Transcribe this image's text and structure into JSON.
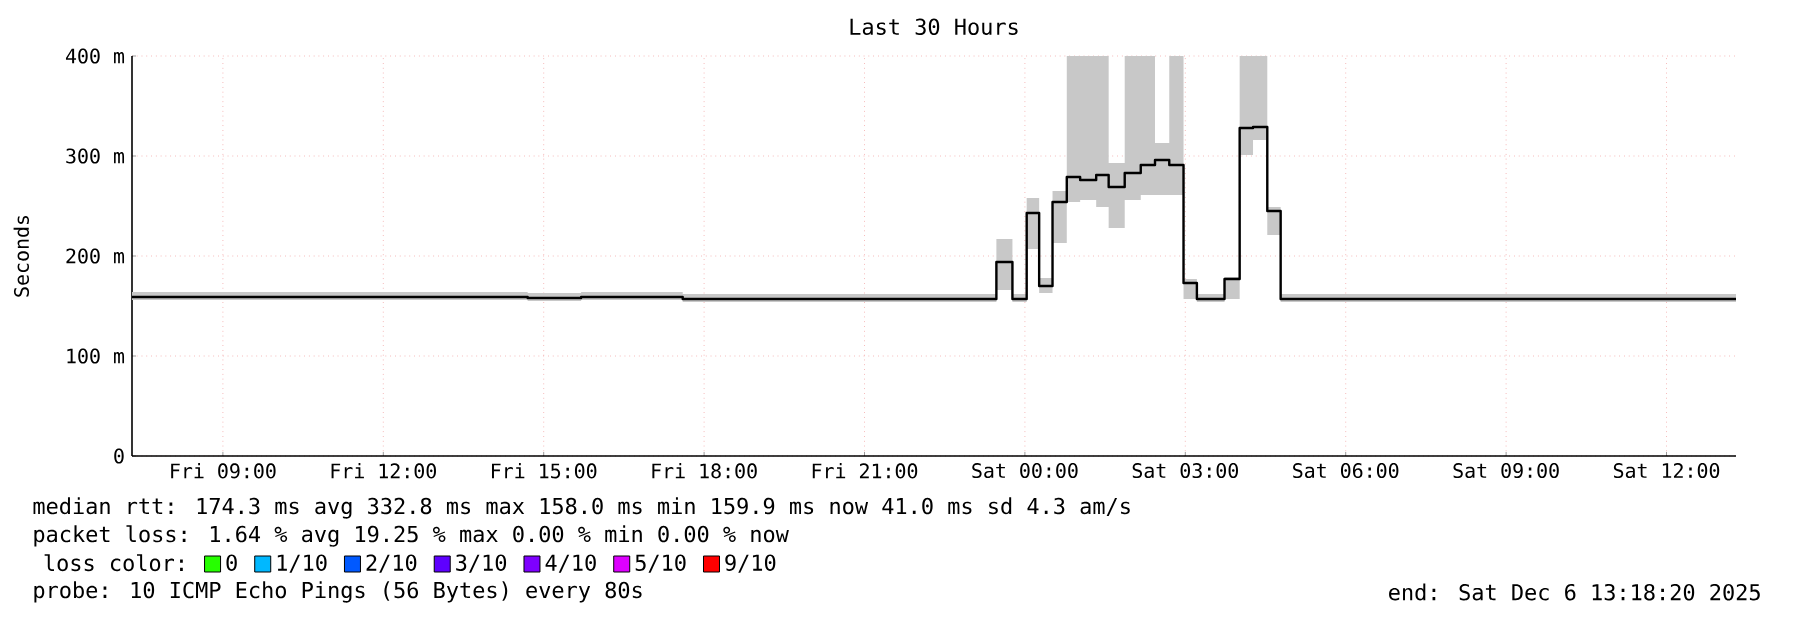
{
  "chart_data": {
    "type": "step",
    "title": "Last 30 Hours",
    "ylabel": "Seconds",
    "legend_title": "loss color:",
    "x": [
      "2025-12-05T07:18",
      "2025-12-05T14:42",
      "2025-12-05T15:42",
      "2025-12-05T17:36",
      "2025-12-05T19:45",
      "2025-12-05T20:30",
      "2025-12-05T21:04",
      "2025-12-05T21:54",
      "2025-12-05T23:12",
      "2025-12-05T23:28",
      "2025-12-05T23:46",
      "2025-12-06T00:02",
      "2025-12-06T00:16",
      "2025-12-06T00:31",
      "2025-12-06T00:47",
      "2025-12-06T01:02",
      "2025-12-06T01:20",
      "2025-12-06T01:34",
      "2025-12-06T01:52",
      "2025-12-06T02:10",
      "2025-12-06T02:26",
      "2025-12-06T02:42",
      "2025-12-06T02:58",
      "2025-12-06T03:13",
      "2025-12-06T03:29",
      "2025-12-06T03:44",
      "2025-12-06T04:01",
      "2025-12-06T04:16",
      "2025-12-06T04:32",
      "2025-12-06T04:47",
      "2025-12-06T13:18"
    ],
    "series": [
      {
        "color": "#000000",
        "values": [
          159,
          158,
          159,
          157,
          157,
          157,
          157,
          157,
          157,
          194,
          157,
          243,
          170,
          254,
          279,
          276,
          281,
          269,
          283,
          291,
          296,
          291,
          173,
          157,
          157,
          177,
          328,
          329,
          245,
          157,
          157
        ],
        "lower": [
          156,
          155,
          156,
          154,
          154,
          154,
          154,
          154,
          154,
          166,
          154,
          207,
          163,
          213,
          254,
          256,
          249,
          228,
          256,
          261,
          261,
          261,
          157,
          154,
          154,
          157,
          301,
          316,
          221,
          154,
          154
        ],
        "upper": [
          164,
          163,
          164,
          162,
          162,
          162,
          162,
          162,
          162,
          217,
          162,
          258,
          178,
          265,
          400,
          400,
          400,
          293,
          400,
          400,
          313,
          400,
          177,
          162,
          162,
          179,
          400,
          400,
          249,
          162,
          162
        ]
      },
      {
        "name": "0",
        "color": "#26ff00",
        "values": [
          null,
          null,
          null,
          null,
          null,
          null,
          null,
          null,
          null,
          null,
          null,
          null,
          null,
          null,
          null,
          null,
          null,
          null,
          null,
          null,
          null,
          null,
          null,
          null,
          null,
          null,
          null,
          null,
          null,
          null,
          null
        ]
      },
      {
        "name": "1/10",
        "color": "#00b8ff",
        "values": [
          null,
          null,
          null,
          null,
          null,
          null,
          null,
          null,
          null,
          null,
          null,
          null,
          null,
          null,
          null,
          null,
          null,
          null,
          null,
          null,
          null,
          null,
          null,
          null,
          null,
          null,
          null,
          null,
          null,
          null,
          null
        ]
      },
      {
        "name": "2/10",
        "color": "#0059ff",
        "values": [
          null,
          null,
          null,
          null,
          null,
          null,
          null,
          null,
          null,
          null,
          null,
          null,
          null,
          null,
          null,
          null,
          null,
          null,
          null,
          null,
          null,
          null,
          null,
          null,
          null,
          null,
          null,
          null,
          null,
          null,
          null
        ]
      },
      {
        "name": "3/10",
        "color": "#5e00ff",
        "values": [
          null,
          null,
          null,
          null,
          null,
          null,
          null,
          null,
          null,
          null,
          null,
          null,
          null,
          null,
          null,
          null,
          null,
          null,
          null,
          null,
          null,
          null,
          null,
          null,
          null,
          null,
          null,
          null,
          null,
          null,
          null
        ]
      },
      {
        "name": "4/10",
        "color": "#7e00ff",
        "values": [
          null,
          null,
          null,
          null,
          null,
          null,
          null,
          null,
          null,
          null,
          null,
          null,
          null,
          null,
          null,
          null,
          null,
          null,
          null,
          null,
          null,
          null,
          null,
          null,
          null,
          null,
          null,
          null,
          null,
          null,
          null
        ]
      },
      {
        "name": "5/10",
        "color": "#dd00ff",
        "values": [
          null,
          null,
          null,
          null,
          null,
          null,
          null,
          null,
          null,
          null,
          null,
          null,
          null,
          null,
          null,
          null,
          null,
          null,
          null,
          null,
          null,
          null,
          null,
          null,
          null,
          null,
          null,
          null,
          null,
          null,
          null
        ]
      },
      {
        "name": "9/10",
        "color": "#ff0000",
        "values": [
          null,
          null,
          null,
          null,
          null,
          null,
          null,
          null,
          null,
          null,
          null,
          null,
          null,
          null,
          null,
          null,
          null,
          null,
          null,
          null,
          null,
          null,
          null,
          null,
          null,
          null,
          null,
          null,
          null,
          null,
          null
        ]
      }
    ],
    "xlim": [
      "2025-12-05T07:18",
      "2025-12-06T13:18"
    ],
    "ylim": [
      0,
      400
    ],
    "xticks": [
      {
        "value": "2025-12-05T09:00",
        "label": "Fri 09:00"
      },
      {
        "value": "2025-12-05T12:00",
        "label": "Fri 12:00"
      },
      {
        "value": "2025-12-05T15:00",
        "label": "Fri 15:00"
      },
      {
        "value": "2025-12-05T18:00",
        "label": "Fri 18:00"
      },
      {
        "value": "2025-12-05T21:00",
        "label": "Fri 21:00"
      },
      {
        "value": "2025-12-06T00:00",
        "label": "Sat 00:00"
      },
      {
        "value": "2025-12-06T03:00",
        "label": "Sat 03:00"
      },
      {
        "value": "2025-12-06T06:00",
        "label": "Sat 06:00"
      },
      {
        "value": "2025-12-06T09:00",
        "label": "Sat 09:00"
      },
      {
        "value": "2025-12-06T12:00",
        "label": "Sat 12:00"
      }
    ],
    "yticks": [
      0,
      {
        "value": 100,
        "label": "100 m"
      },
      {
        "value": 200,
        "label": "200 m"
      },
      {
        "value": 300,
        "label": "300 m"
      },
      {
        "value": 400,
        "label": "400 m"
      }
    ],
    "grid": true,
    "legend": "bottom",
    "annotations": [
      "median rtt: 174.3 ms avg 332.8 ms max 158.0 ms min 159.9 ms now 41.0 ms sd 4.3 am/s",
      "packet loss: 1.64 % avg 19.25 % max 0.00 % min 0.00 % now",
      "probe: 10 ICMP Echo Pings (56 Bytes) every 80s",
      "end: Sat Dec 6 13:18:20 2025"
    ]
  }
}
